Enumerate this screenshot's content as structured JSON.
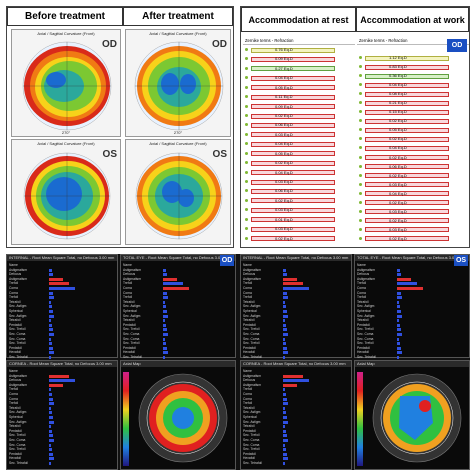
{
  "headers": {
    "before": "Before treatment",
    "after": "After treatment",
    "rest": "Accommodation at rest",
    "work": "Accommodation at work"
  },
  "topo": {
    "caption": "Axial / Sagittal Curvature (Front)",
    "od_label": "OD",
    "os_label": "OS",
    "axis_label": "270°"
  },
  "zernike": {
    "panel_title": "Zernike terms - Refraction",
    "od_badge": "OD",
    "rows_rest": [
      "0.76 Eq.D",
      "0.09 Eq.D",
      "0.27 Eq.D",
      "0.04 Eq.D",
      "0.05 Eq.D",
      "0.11 Eq.D",
      "0.09 Eq.D",
      "0.02 Eq.D",
      "0.06 Eq.D",
      "0.03 Eq.D",
      "0.04 Eq.D",
      "0.05 Eq.D",
      "0.02 Eq.D",
      "0.04 Eq.D",
      "0.03 Eq.D",
      "0.06 Eq.D",
      "0.02 Eq.D",
      "0.03 Eq.D",
      "0.01 Eq.D",
      "0.03 Eq.D",
      "0.02 Eq.D"
    ],
    "rows_work": [
      "1.12 Eq.D",
      "0.83 Eq.D",
      "0.36 Eq.D",
      "0.04 Eq.D",
      "0.08 Eq.D",
      "0.21 Eq.D",
      "0.15 Eq.D",
      "0.02 Eq.D",
      "0.05 Eq.D",
      "0.02 Eq.D",
      "0.04 Eq.D",
      "0.02 Eq.D",
      "0.06 Eq.D",
      "0.02 Eq.D",
      "0.03 Eq.D",
      "0.04 Eq.D",
      "0.02 Eq.D",
      "0.03 Eq.D",
      "0.02 Eq.D",
      "0.03 Eq.D",
      "0.02 Eq.D"
    ]
  },
  "aberro": {
    "internal_title": "INTERNAL - Root Mean Square   Total, no Defocus   3.00 mm",
    "total_eye_title": "TOTAL EYE - Root Mean Square   Total, no Defocus   3.00 mm",
    "cornea_title": "CORNEA - Root Mean Square   Total, no Defocus   3.00 mm",
    "axial_map": "Axial Map",
    "od": "OD",
    "os": "OS",
    "terms": [
      "Name",
      "Astigmatism",
      "Defocus",
      "Astigmatism",
      "Trefoil",
      "Coma",
      "Coma",
      "Trefoil",
      "Tetrafoil",
      "Sec. Astigm",
      "Spherical",
      "Sec. Astigm",
      "Tetrafoil",
      "Pentafoil",
      "Sec. Trefoil",
      "Sec. Coma",
      "Sec. Coma",
      "Sec. Trefoil",
      "Pentafoil",
      "Hexafoil",
      "Sec. Tetrafoil"
    ]
  },
  "colors": {
    "accent_blue": "#1a4fc2",
    "bar_red": "#e03030",
    "bar_blue": "#3050e0"
  }
}
